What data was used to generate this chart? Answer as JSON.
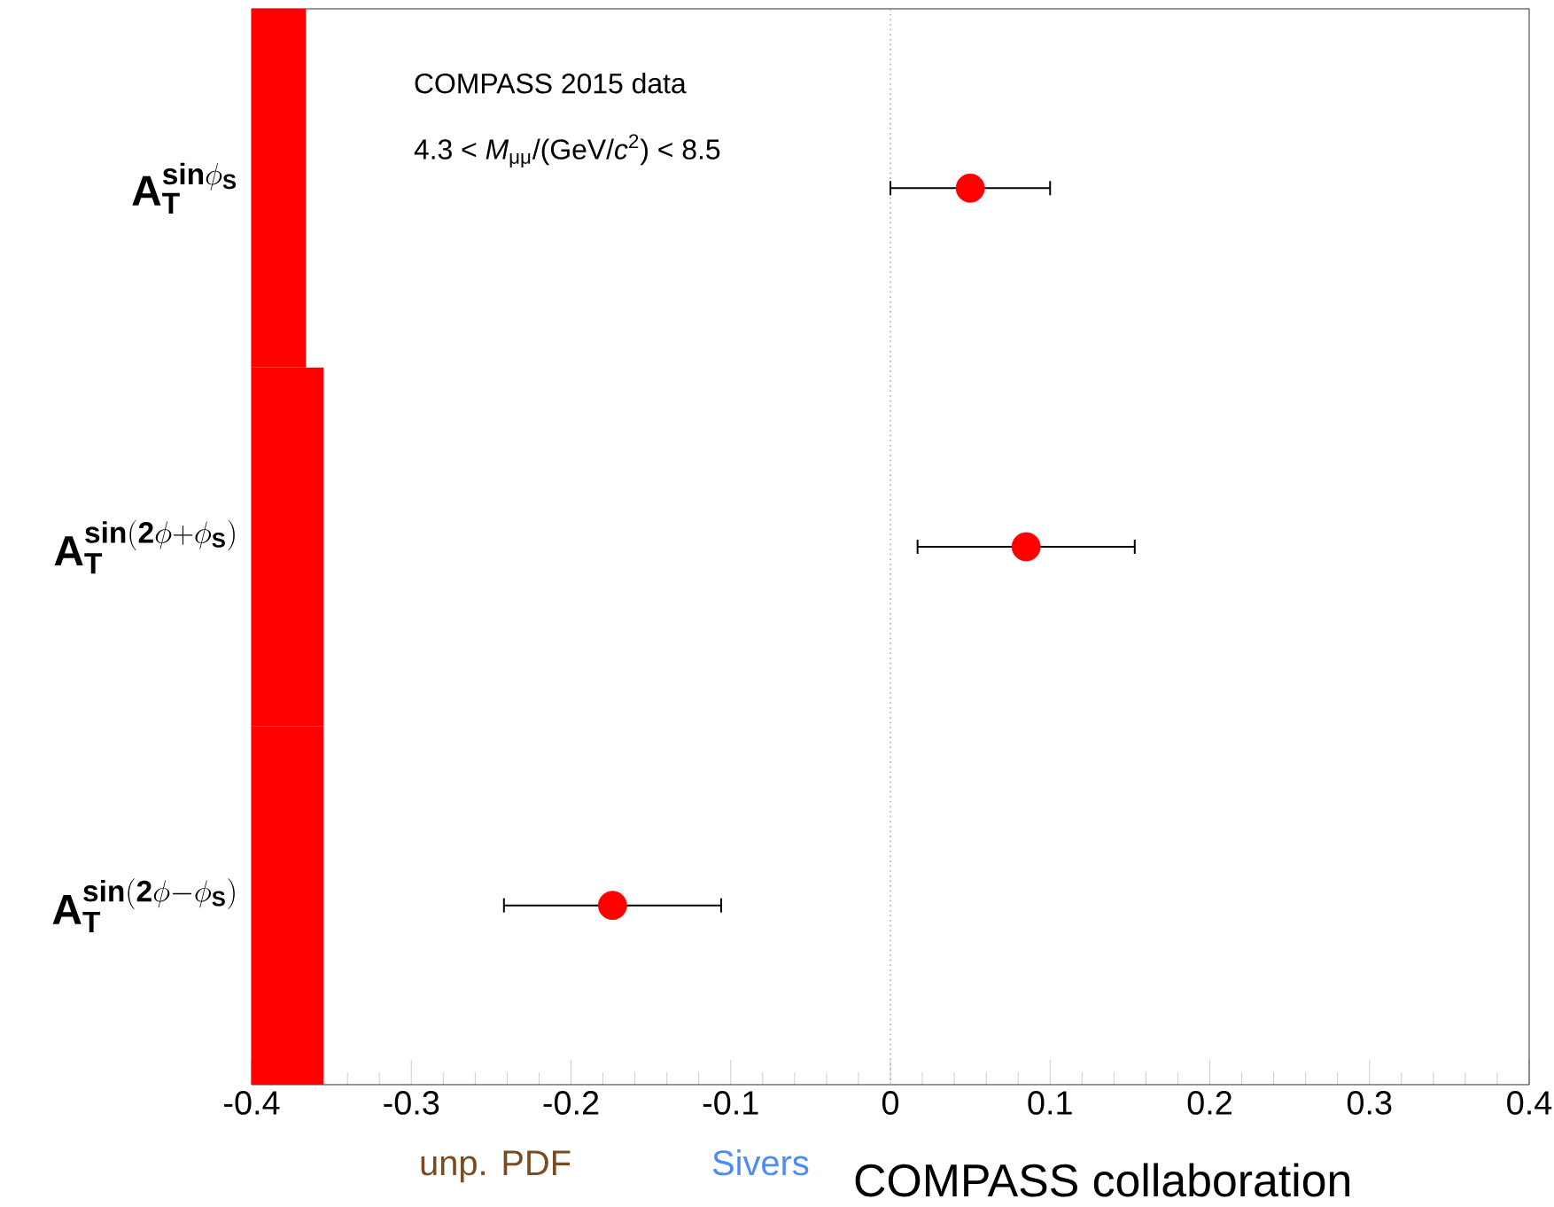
{
  "chart_data": {
    "type": "scatter",
    "orientation": "horizontal",
    "categories": [
      "\\mathbf{A}_{\\mathbf{T}}^{\\mathbf{sin}\\phi_{\\mathbf{S}}}",
      "\\mathbf{A}_{\\mathbf{T}}^{\\mathbf{sin(2}\\phi\\mathbf{+}\\phi_{\\mathbf{S}}\\mathbf{)}}",
      "\\mathbf{A}_{\\mathbf{T}}^{\\mathbf{sin(2}\\phi\\mathbf{-}\\phi_{\\mathbf{S}}\\mathbf{)}}"
    ],
    "series": [
      {
        "type": "bar",
        "color": "#ff0000",
        "values": [
          0.034,
          0.045,
          0.045
        ],
        "base": [
          -0.4,
          -0.4,
          -0.4
        ]
      },
      {
        "color": "#ff0000",
        "marker": "circle",
        "values": [
          0.05,
          0.085,
          -0.174
        ],
        "errors": [
          0.05,
          0.068,
          0.068
        ]
      }
    ],
    "xlim": [
      -0.4,
      0.4
    ],
    "xticks": [
      -0.4,
      -0.3,
      -0.2,
      -0.1,
      0,
      0.1,
      0.2,
      0.3,
      0.4
    ],
    "ref_lines": [
      {
        "axis": "x",
        "value": 0,
        "line_style": "dotted",
        "color": "#aaaaaa"
      }
    ],
    "annotations": [
      "COMPASS 2015 data",
      "4.3 < *M*$_{μμ}$/(GeV/*c*$^{2}$) < 8.5",
      "unp. PDF",
      "Sivers",
      "COMPASS collaboration"
    ]
  }
}
